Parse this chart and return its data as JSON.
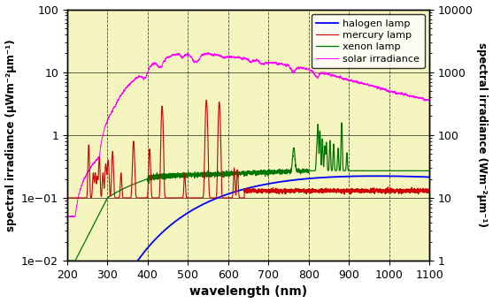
{
  "xlim": [
    200,
    1100
  ],
  "ylim_left": [
    0.01,
    100
  ],
  "ylim_right": [
    1,
    10000
  ],
  "xlabel": "wavelength (nm)",
  "ylabel_left": "spectral irradiance (μWm⁻²μm⁻¹)",
  "ylabel_right": "spectral irradiance (Wm⁻²μm⁻¹)",
  "background_color": "#f5f5c0",
  "outer_background": "#ffffff",
  "xticks": [
    200,
    300,
    400,
    500,
    600,
    700,
    800,
    900,
    1000,
    1100
  ],
  "legend_labels": [
    "halogen lamp",
    "mercury lamp",
    "xenon lamp",
    "solar irradiance"
  ],
  "halogen_color": "#0000ff",
  "mercury_color": "#cc0000",
  "xenon_color": "#007700",
  "solar_color": "#ff00ff"
}
